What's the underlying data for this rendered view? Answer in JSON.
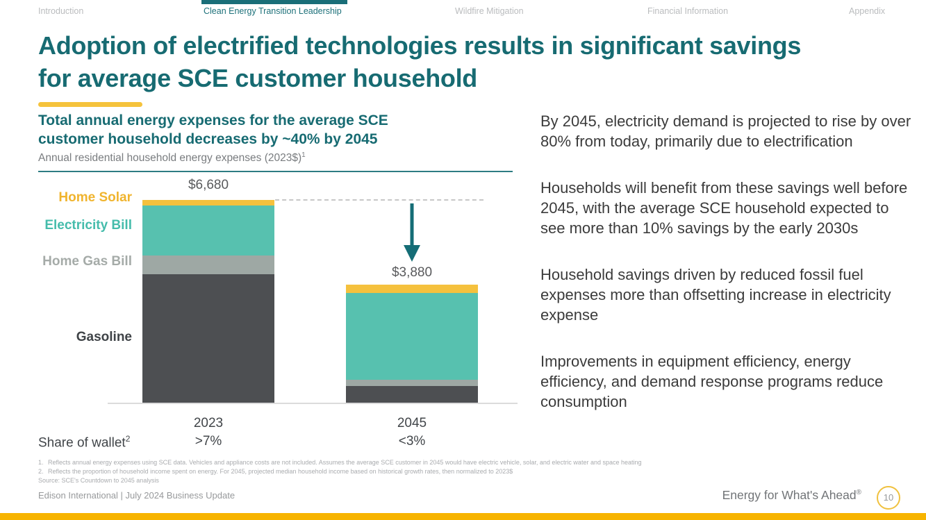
{
  "nav": {
    "items": [
      {
        "label": "Introduction",
        "active": false
      },
      {
        "label": "Clean Energy Transition Leadership",
        "active": true
      },
      {
        "label": "Wildfire Mitigation",
        "active": false
      },
      {
        "label": "Financial Information",
        "active": false
      },
      {
        "label": "Appendix",
        "active": false
      }
    ],
    "active_indicator_color": "#196e78"
  },
  "title": {
    "line1": "Adoption of electrified technologies results in significant savings",
    "line2": "for average SCE customer household",
    "accent_color": "#f5c33c",
    "text_color": "#176b72"
  },
  "chart": {
    "heading_line1": "Total annual energy expenses for the average SCE",
    "heading_line2": "customer household decreases by ~40% by 2045",
    "subtitle": "Annual residential household energy expenses (2023$)",
    "subtitle_sup": "1"
  },
  "chart_data": {
    "type": "bar",
    "stacked": true,
    "categories": [
      "2023",
      "2045"
    ],
    "series": [
      {
        "name": "Gasoline",
        "color": "#4d4f52",
        "values": [
          4230,
          540
        ]
      },
      {
        "name": "Home Gas Bill",
        "color": "#9ea8a4",
        "values": [
          620,
          210
        ]
      },
      {
        "name": "Electricity Bill",
        "color": "#57c1af",
        "values": [
          1650,
          2860
        ]
      },
      {
        "name": "Home Solar",
        "color": "#f5c13d",
        "values": [
          180,
          270
        ]
      }
    ],
    "totals": [
      6680,
      3880
    ],
    "total_labels": [
      "$6,680",
      "$3,880"
    ],
    "share_of_wallet": {
      "label": "Share of wallet",
      "label_sup": "2",
      "values": [
        ">7%",
        "<3%"
      ]
    },
    "legend_position": "left",
    "grid": false,
    "annotations": [
      "dashed reference line at 2023 total",
      "downward arrow indicating savings"
    ]
  },
  "bullets": [
    "By 2045, electricity demand is projected to rise by over 80% from today, primarily due to electrification",
    "Households will benefit from these savings well before 2045, with the average SCE household expected to see more than 10% savings by the early 2030s",
    "Household savings driven by reduced fossil fuel expenses more than offsetting increase in electricity expense",
    "Improvements in equipment efficiency, energy efficiency, and demand response programs reduce consumption"
  ],
  "footnotes": [
    {
      "num": "1.",
      "text": "Reflects annual energy expenses using SCE data. Vehicles and appliance costs are not included. Assumes the average SCE customer in 2045 would have electric vehicle, solar, and electric water and space heating"
    },
    {
      "num": "2.",
      "text": "Reflects the proportion of household income spent on energy. For 2045, projected median household income based on historical growth rates, then normalized to 2023$"
    }
  ],
  "source": "Source: SCE's Countdown to 2045 analysis",
  "footer": {
    "left": "Edison International | July 2024 Business Update",
    "right_text": "Energy for What's Ahead",
    "right_reg": "®",
    "page_number": "10",
    "bottom_bar_color": "#f7b400"
  }
}
